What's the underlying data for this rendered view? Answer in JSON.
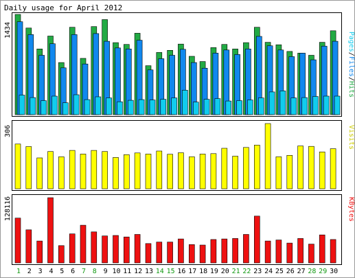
{
  "title": "Daily usage for April 2012",
  "colors": {
    "hits": "#22aa44",
    "files": "#1188ee",
    "pages": "#11ccee",
    "visits": "#ffff00",
    "kbytes": "#ee1111",
    "weekend_label": "#119911",
    "weekday_label": "#000000",
    "panel_bg": "#ffffff",
    "page_bg": "#ffffff"
  },
  "chart_data": [
    {
      "type": "bar",
      "panel": "hits_files_pages",
      "right_label": "Pages/Files/Hits",
      "ymax_label": "1434",
      "ymax": 1434,
      "categories": [
        "1",
        "2",
        "3",
        "4",
        "5",
        "6",
        "7",
        "8",
        "9",
        "10",
        "11",
        "12",
        "13",
        "14",
        "15",
        "16",
        "17",
        "18",
        "19",
        "20",
        "21",
        "22",
        "23",
        "24",
        "25",
        "26",
        "27",
        "28",
        "29",
        "30"
      ],
      "series": [
        {
          "name": "Hits",
          "key": "hits",
          "values": [
            1434,
            1240,
            940,
            1125,
            745,
            1250,
            805,
            1260,
            1360,
            1030,
            1005,
            1165,
            700,
            890,
            920,
            1010,
            835,
            760,
            960,
            1005,
            940,
            1030,
            1250,
            1035,
            1000,
            905,
            880,
            850,
            1035,
            1200
          ]
        },
        {
          "name": "Files",
          "key": "files",
          "values": [
            1330,
            1145,
            850,
            1015,
            670,
            1145,
            725,
            1160,
            1050,
            955,
            940,
            1065,
            640,
            800,
            850,
            935,
            745,
            665,
            880,
            925,
            860,
            940,
            1120,
            985,
            925,
            830,
            880,
            785,
            980,
            1050
          ]
        },
        {
          "name": "Pages",
          "key": "pages",
          "values": [
            280,
            245,
            200,
            265,
            170,
            285,
            215,
            255,
            240,
            185,
            205,
            215,
            210,
            220,
            240,
            350,
            180,
            220,
            230,
            195,
            200,
            210,
            240,
            325,
            340,
            240,
            245,
            260,
            265,
            265
          ]
        }
      ]
    },
    {
      "type": "bar",
      "panel": "visits",
      "right_label": "Visits",
      "ymax_label": "306",
      "ymax": 306,
      "categories": [
        "1",
        "2",
        "3",
        "4",
        "5",
        "6",
        "7",
        "8",
        "9",
        "10",
        "11",
        "12",
        "13",
        "14",
        "15",
        "16",
        "17",
        "18",
        "19",
        "20",
        "21",
        "22",
        "23",
        "24",
        "25",
        "26",
        "27",
        "28",
        "29",
        "30"
      ],
      "series": [
        {
          "name": "Visits",
          "key": "visits",
          "values": [
            210,
            198,
            145,
            175,
            150,
            180,
            163,
            180,
            175,
            147,
            160,
            168,
            163,
            177,
            162,
            169,
            150,
            163,
            165,
            190,
            153,
            194,
            205,
            306,
            150,
            157,
            201,
            199,
            173,
            188
          ]
        }
      ]
    },
    {
      "type": "bar",
      "panel": "kbytes",
      "right_label": "KBytes",
      "ymax_label": "128116",
      "ymax": 128116,
      "categories": [
        "1",
        "2",
        "3",
        "4",
        "5",
        "6",
        "7",
        "8",
        "9",
        "10",
        "11",
        "12",
        "13",
        "14",
        "15",
        "16",
        "17",
        "18",
        "19",
        "20",
        "21",
        "22",
        "23",
        "24",
        "25",
        "26",
        "27",
        "28",
        "29",
        "30"
      ],
      "series": [
        {
          "name": "KBytes",
          "key": "kbytes",
          "values": [
            88000,
            65000,
            43000,
            128116,
            34000,
            57000,
            74000,
            61000,
            53000,
            54000,
            51000,
            56000,
            38000,
            41000,
            41000,
            47000,
            36000,
            35000,
            46000,
            47000,
            48000,
            56000,
            92000,
            43000,
            45000,
            39000,
            48000,
            37000,
            55000,
            46000
          ]
        }
      ]
    }
  ],
  "weekend_days": [
    "1",
    "7",
    "8",
    "14",
    "15",
    "21",
    "22",
    "28",
    "29"
  ]
}
